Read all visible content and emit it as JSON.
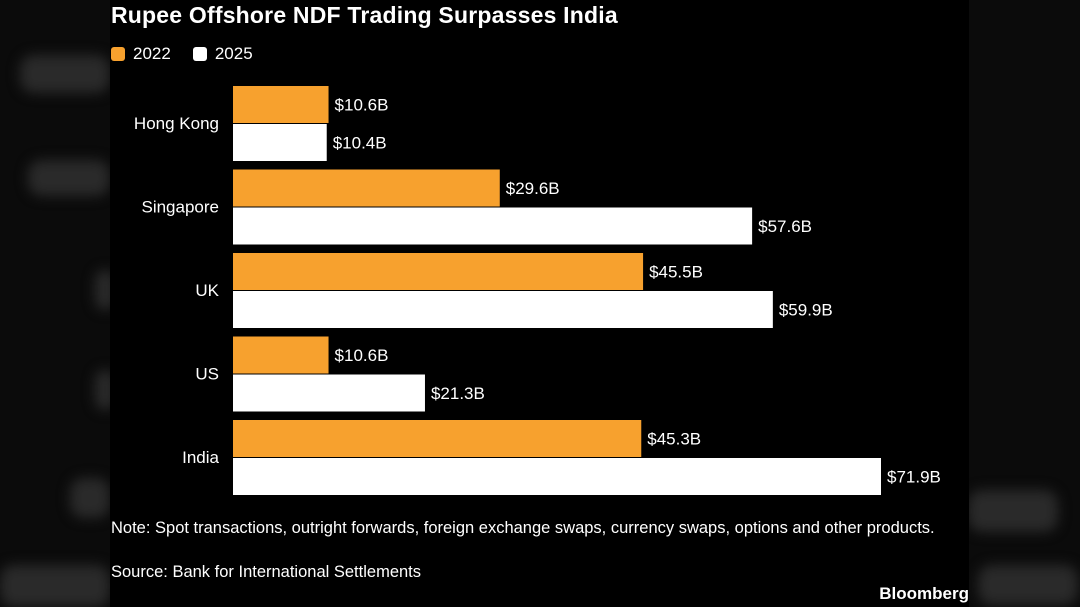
{
  "colors": {
    "series_2022": "#f7a12e",
    "series_2025": "#ffffff",
    "background": "#000000"
  },
  "chart_data": {
    "type": "bar",
    "orientation": "horizontal",
    "title": "Rupee Offshore NDF Trading Surpasses India",
    "categories": [
      "Hong Kong",
      "Singapore",
      "UK",
      "US",
      "India"
    ],
    "series": [
      {
        "name": "2022",
        "values": [
          10.6,
          29.6,
          45.5,
          10.6,
          45.3
        ],
        "labels": [
          "$10.6B",
          "$29.6B",
          "$45.5B",
          "$10.6B",
          "$45.3B"
        ]
      },
      {
        "name": "2025",
        "values": [
          10.4,
          57.6,
          59.9,
          21.3,
          71.9
        ],
        "labels": [
          "$10.4B",
          "$57.6B",
          "$59.9B",
          "$21.3B",
          "$71.9B"
        ]
      }
    ],
    "xlim": [
      0,
      71.9
    ],
    "unit": "USD billions",
    "legend_position": "top-left",
    "grid": false
  },
  "footer": {
    "note": "Note: Spot transactions, outright forwards, foreign exchange swaps, currency swaps, options and other products.",
    "source": "Source: Bank for International Settlements",
    "brand": "Bloomberg"
  }
}
